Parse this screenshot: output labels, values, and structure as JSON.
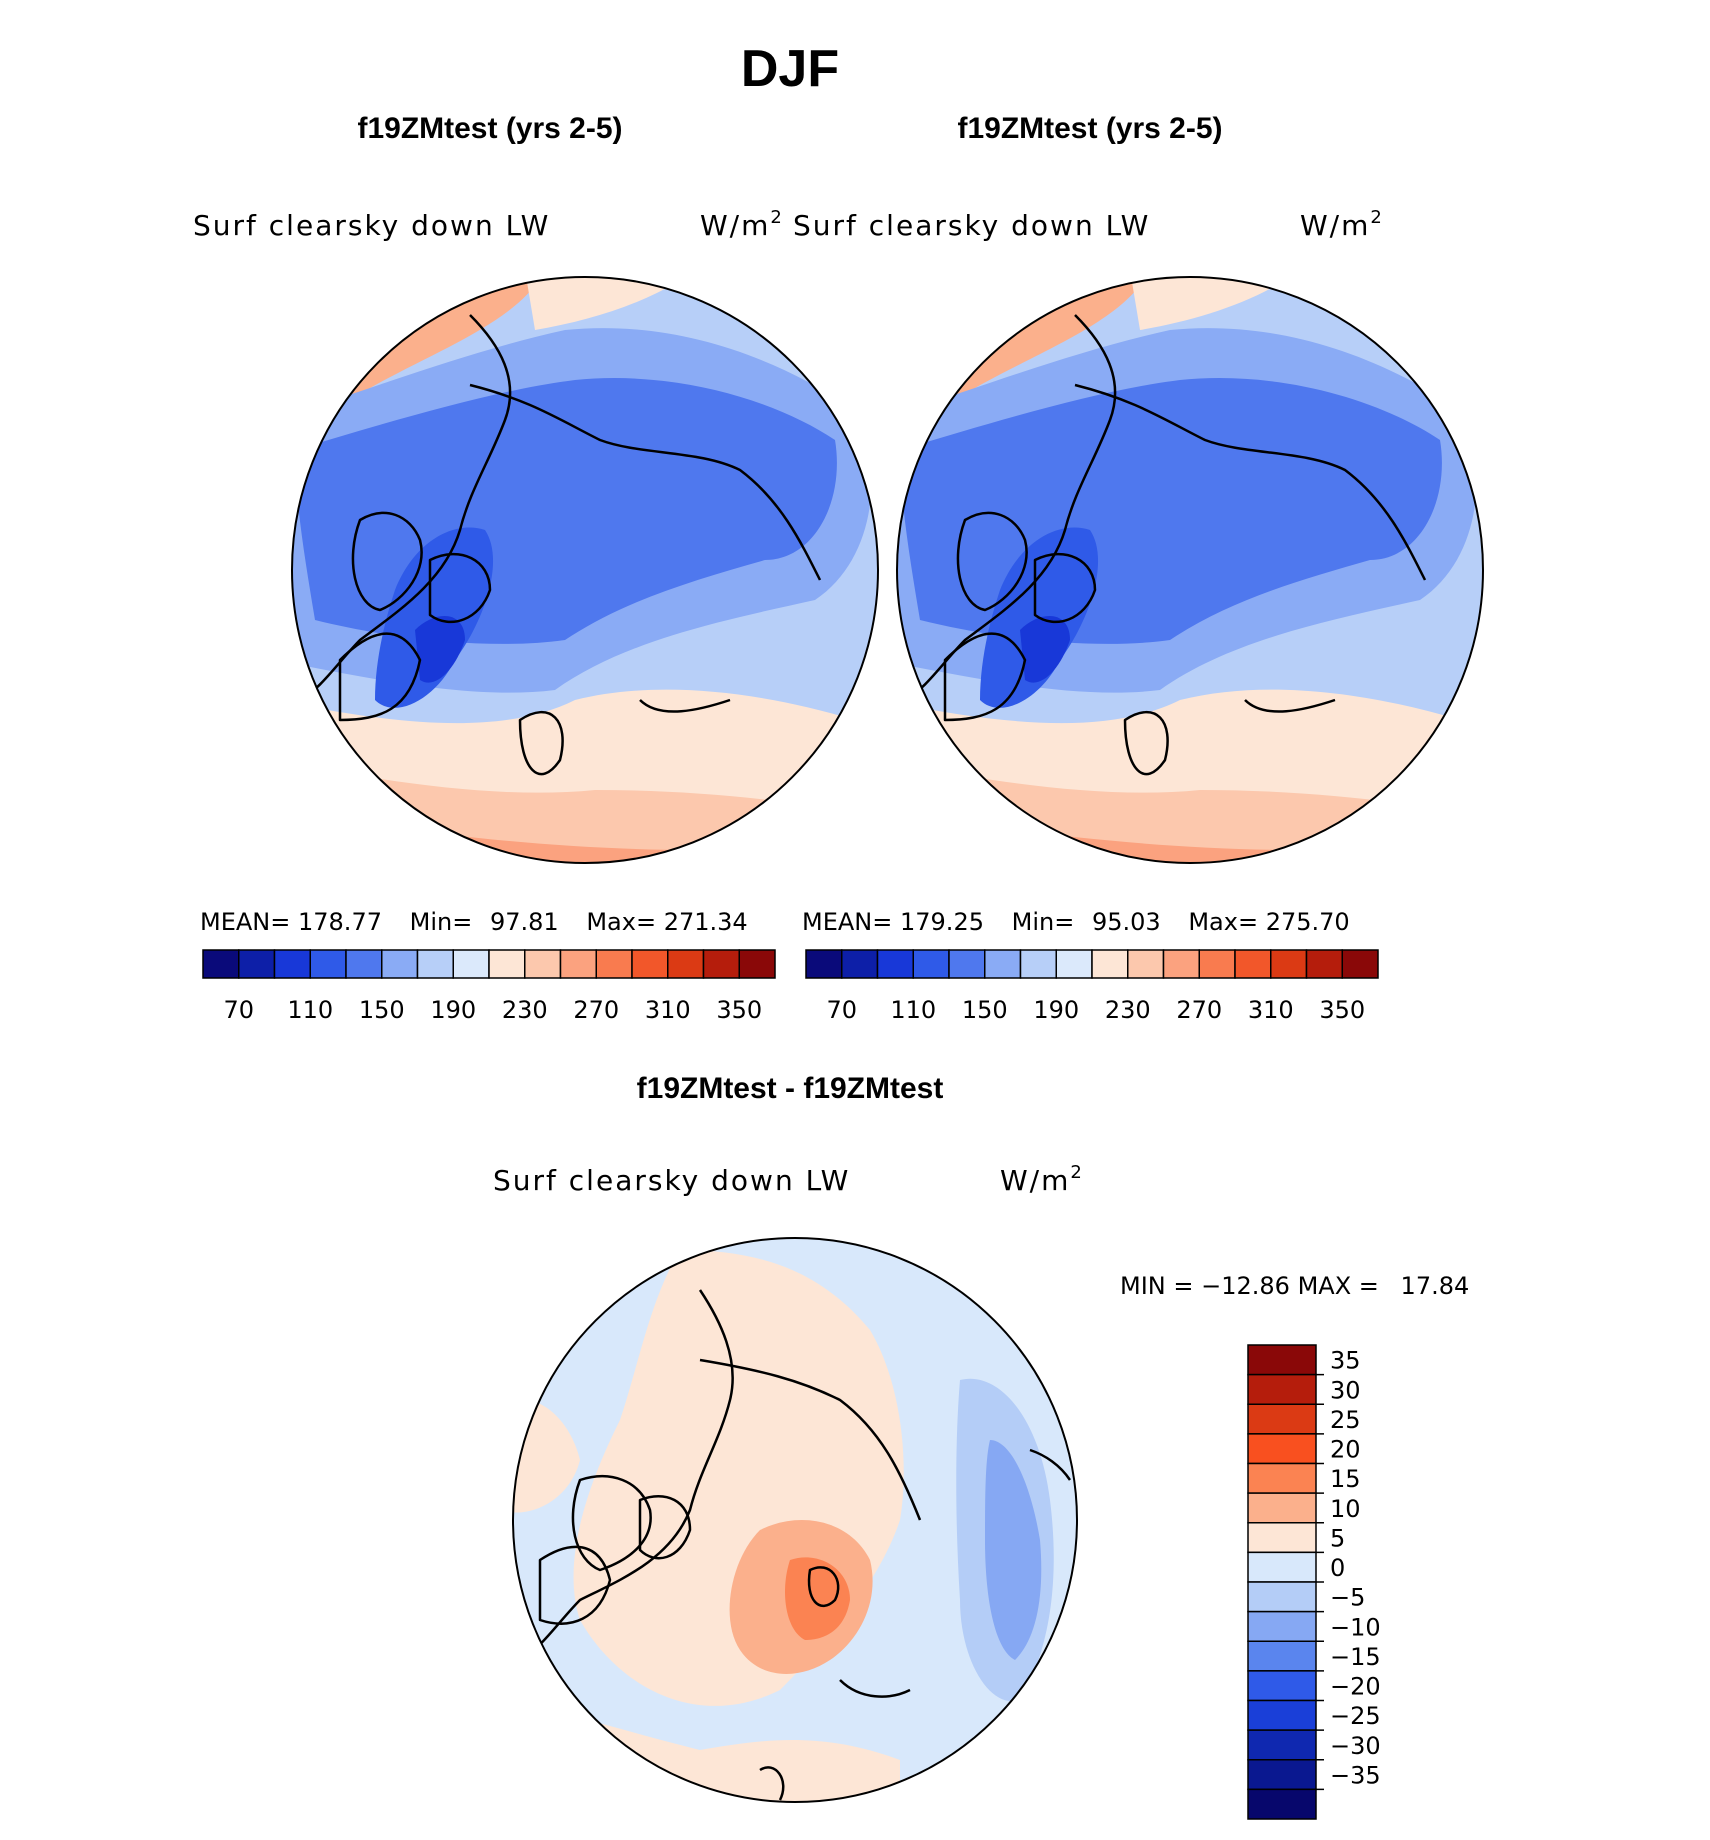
{
  "figure": {
    "title": "DJF",
    "panel_left_title": "f19ZMtest (yrs 2-5)",
    "panel_right_title": "f19ZMtest (yrs 2-5)",
    "panel_diff_title": "f19ZMtest - f19ZMtest"
  },
  "chart_data": [
    {
      "type": "heatmap",
      "projection": "north polar stereographic",
      "title": "f19ZMtest (yrs 2-5)",
      "variable": "Surf clearsky down LW",
      "units": "W/m",
      "units_superscript": "2",
      "stats": {
        "mean_label": "MEAN=",
        "mean": "178.77",
        "min_label": "Min=",
        "min": "97.81",
        "max_label": "Max=",
        "max": "271.34"
      },
      "colorbar": {
        "levels": [
          70,
          90,
          110,
          130,
          150,
          170,
          190,
          210,
          230,
          250,
          270,
          290,
          310,
          330,
          350
        ],
        "tick_labels": [
          "70",
          "110",
          "150",
          "190",
          "230",
          "270",
          "310",
          "350"
        ],
        "colors": [
          "#0a0a7a",
          "#0d1fa8",
          "#1838d8",
          "#2f5ae8",
          "#4f78ee",
          "#8aabf5",
          "#b7cff8",
          "#dbe9fb",
          "#fde6d6",
          "#fcc8ad",
          "#fba27f",
          "#f97b4f",
          "#f2572a",
          "#db3a14",
          "#b51d0c",
          "#8a0808"
        ]
      }
    },
    {
      "type": "heatmap",
      "projection": "north polar stereographic",
      "title": "f19ZMtest (yrs 2-5)",
      "variable": "Surf clearsky down LW",
      "units": "W/m",
      "units_superscript": "2",
      "stats": {
        "mean_label": "MEAN=",
        "mean": "179.25",
        "min_label": "Min=",
        "min": "95.03",
        "max_label": "Max=",
        "max": "275.70"
      },
      "colorbar": {
        "levels": [
          70,
          90,
          110,
          130,
          150,
          170,
          190,
          210,
          230,
          250,
          270,
          290,
          310,
          330,
          350
        ],
        "tick_labels": [
          "70",
          "110",
          "150",
          "190",
          "230",
          "270",
          "310",
          "350"
        ],
        "colors": [
          "#0a0a7a",
          "#0d1fa8",
          "#1838d8",
          "#2f5ae8",
          "#4f78ee",
          "#8aabf5",
          "#b7cff8",
          "#dbe9fb",
          "#fde6d6",
          "#fcc8ad",
          "#fba27f",
          "#f97b4f",
          "#f2572a",
          "#db3a14",
          "#b51d0c",
          "#8a0808"
        ]
      }
    },
    {
      "type": "heatmap",
      "projection": "north polar stereographic",
      "title": "f19ZMtest - f19ZMtest",
      "variable": "Surf clearsky down LW",
      "units": "W/m",
      "units_superscript": "2",
      "stats": {
        "min_label": "MIN =",
        "min": "−12.86",
        "max_label": "MAX =",
        "max": "17.84"
      },
      "colorbar": {
        "levels": [
          35,
          30,
          25,
          20,
          15,
          10,
          5,
          0,
          -5,
          -10,
          -15,
          -20,
          -25,
          -30,
          -35
        ],
        "tick_labels": [
          "35",
          "30",
          "25",
          "20",
          "15",
          "10",
          "5",
          "0",
          "−5",
          "−10",
          "−15",
          "−20",
          "−25",
          "−30",
          "−35"
        ],
        "colors": [
          "#8a0808",
          "#b51d0c",
          "#db3a14",
          "#f9501f",
          "#fb8352",
          "#fbb08c",
          "#fde6d6",
          "#d8e8fb",
          "#b4cdf7",
          "#86a8f3",
          "#5a85ee",
          "#2f5ae8",
          "#1a3fd8",
          "#0f28b0",
          "#0a1890",
          "#07076c"
        ]
      }
    }
  ]
}
